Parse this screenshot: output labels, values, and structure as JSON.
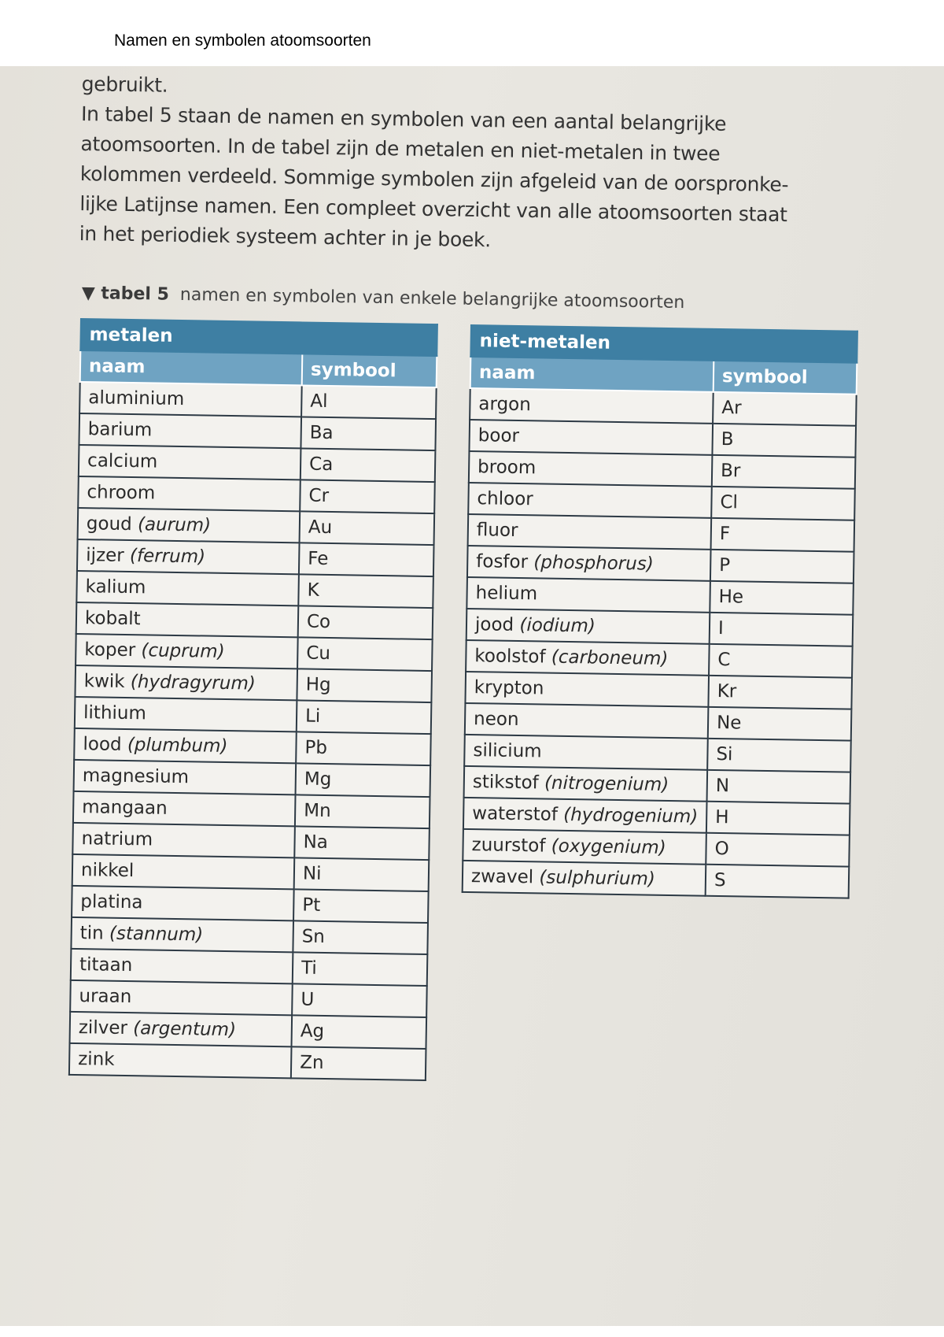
{
  "overlay_title": "Namen en symbolen atoomsoorten",
  "paragraph": [
    "gebruikt.",
    "In tabel 5 staan de namen en symbolen van een aantal belangrijke",
    "atoomsoorten. In de tabel zijn de metalen en niet-metalen in twee",
    "kolommen verdeeld. Sommige symbolen zijn afgeleid van de oorspronke-",
    "lijke Latijnse namen. Een compleet overzicht van alle atoomsoorten staat",
    "in het periodiek systeem achter in je boek."
  ],
  "caption": {
    "marker": "▼ tabel 5",
    "text": "namen en symbolen van enkele belangrijke atoomsoorten"
  },
  "colors": {
    "header": "#3e7fa3",
    "subheader": "#6fa3c2"
  },
  "metals": {
    "title": "metalen",
    "columns": [
      "naam",
      "symbool"
    ],
    "rows": [
      {
        "name": "aluminium",
        "latin": "",
        "symbol": "Al"
      },
      {
        "name": "barium",
        "latin": "",
        "symbol": "Ba"
      },
      {
        "name": "calcium",
        "latin": "",
        "symbol": "Ca"
      },
      {
        "name": "chroom",
        "latin": "",
        "symbol": "Cr"
      },
      {
        "name": "goud",
        "latin": "(aurum)",
        "symbol": "Au"
      },
      {
        "name": "ijzer",
        "latin": "(ferrum)",
        "symbol": "Fe"
      },
      {
        "name": "kalium",
        "latin": "",
        "symbol": "K"
      },
      {
        "name": "kobalt",
        "latin": "",
        "symbol": "Co"
      },
      {
        "name": "koper",
        "latin": "(cuprum)",
        "symbol": "Cu"
      },
      {
        "name": "kwik",
        "latin": "(hydragyrum)",
        "symbol": "Hg"
      },
      {
        "name": "lithium",
        "latin": "",
        "symbol": "Li"
      },
      {
        "name": "lood",
        "latin": "(plumbum)",
        "symbol": "Pb"
      },
      {
        "name": "magnesium",
        "latin": "",
        "symbol": "Mg"
      },
      {
        "name": "mangaan",
        "latin": "",
        "symbol": "Mn"
      },
      {
        "name": "natrium",
        "latin": "",
        "symbol": "Na"
      },
      {
        "name": "nikkel",
        "latin": "",
        "symbol": "Ni"
      },
      {
        "name": "platina",
        "latin": "",
        "symbol": "Pt"
      },
      {
        "name": "tin",
        "latin": "(stannum)",
        "symbol": "Sn"
      },
      {
        "name": "titaan",
        "latin": "",
        "symbol": "Ti"
      },
      {
        "name": "uraan",
        "latin": "",
        "symbol": "U"
      },
      {
        "name": "zilver",
        "latin": "(argentum)",
        "symbol": "Ag"
      },
      {
        "name": "zink",
        "latin": "",
        "symbol": "Zn"
      }
    ]
  },
  "nonmetals": {
    "title": "niet-metalen",
    "columns": [
      "naam",
      "symbool"
    ],
    "rows": [
      {
        "name": "argon",
        "latin": "",
        "symbol": "Ar"
      },
      {
        "name": "boor",
        "latin": "",
        "symbol": "B"
      },
      {
        "name": "broom",
        "latin": "",
        "symbol": "Br"
      },
      {
        "name": "chloor",
        "latin": "",
        "symbol": "Cl"
      },
      {
        "name": "fluor",
        "latin": "",
        "symbol": "F"
      },
      {
        "name": "fosfor",
        "latin": "(phosphorus)",
        "symbol": "P"
      },
      {
        "name": "helium",
        "latin": "",
        "symbol": "He"
      },
      {
        "name": "jood",
        "latin": "(iodium)",
        "symbol": "I"
      },
      {
        "name": "koolstof",
        "latin": "(carboneum)",
        "symbol": "C"
      },
      {
        "name": "krypton",
        "latin": "",
        "symbol": "Kr"
      },
      {
        "name": "neon",
        "latin": "",
        "symbol": "Ne"
      },
      {
        "name": "silicium",
        "latin": "",
        "symbol": "Si"
      },
      {
        "name": "stikstof",
        "latin": "(nitrogenium)",
        "symbol": "N"
      },
      {
        "name": "waterstof",
        "latin": "(hydrogenium)",
        "symbol": "H"
      },
      {
        "name": "zuurstof",
        "latin": "(oxygenium)",
        "symbol": "O"
      },
      {
        "name": "zwavel",
        "latin": "(sulphurium)",
        "symbol": "S"
      }
    ]
  }
}
